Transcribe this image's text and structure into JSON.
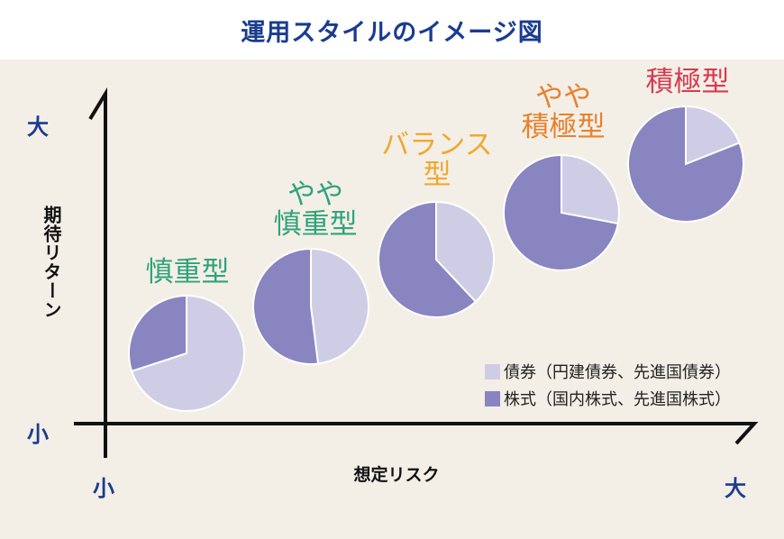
{
  "title": "運用スタイルのイメージ図",
  "y_axis": {
    "label": "期待リターン",
    "high": "大",
    "low": "小"
  },
  "x_axis": {
    "label": "想定リスク",
    "low": "小",
    "high": "大"
  },
  "colors": {
    "bonds": "#cfcde6",
    "stocks": "#8885c0",
    "background": "#f3efe7",
    "title": "#1a3c8f"
  },
  "styles": [
    {
      "label": "慎重型",
      "color": "#2fa37a",
      "bonds_pct": 70
    },
    {
      "label": "やや\n慎重型",
      "color": "#2fa37a",
      "bonds_pct": 48
    },
    {
      "label": "バランス\n型",
      "color": "#f0a830",
      "bonds_pct": 38
    },
    {
      "label": "やや\n積極型",
      "color": "#e8812e",
      "bonds_pct": 28
    },
    {
      "label": "積極型",
      "color": "#d63b50",
      "bonds_pct": 19
    }
  ],
  "legend": [
    {
      "label": "債券（円建債券、先進国債券）",
      "color": "#cfcde6"
    },
    {
      "label": "株式（国内株式、先進国株式）",
      "color": "#8885c0"
    }
  ]
}
